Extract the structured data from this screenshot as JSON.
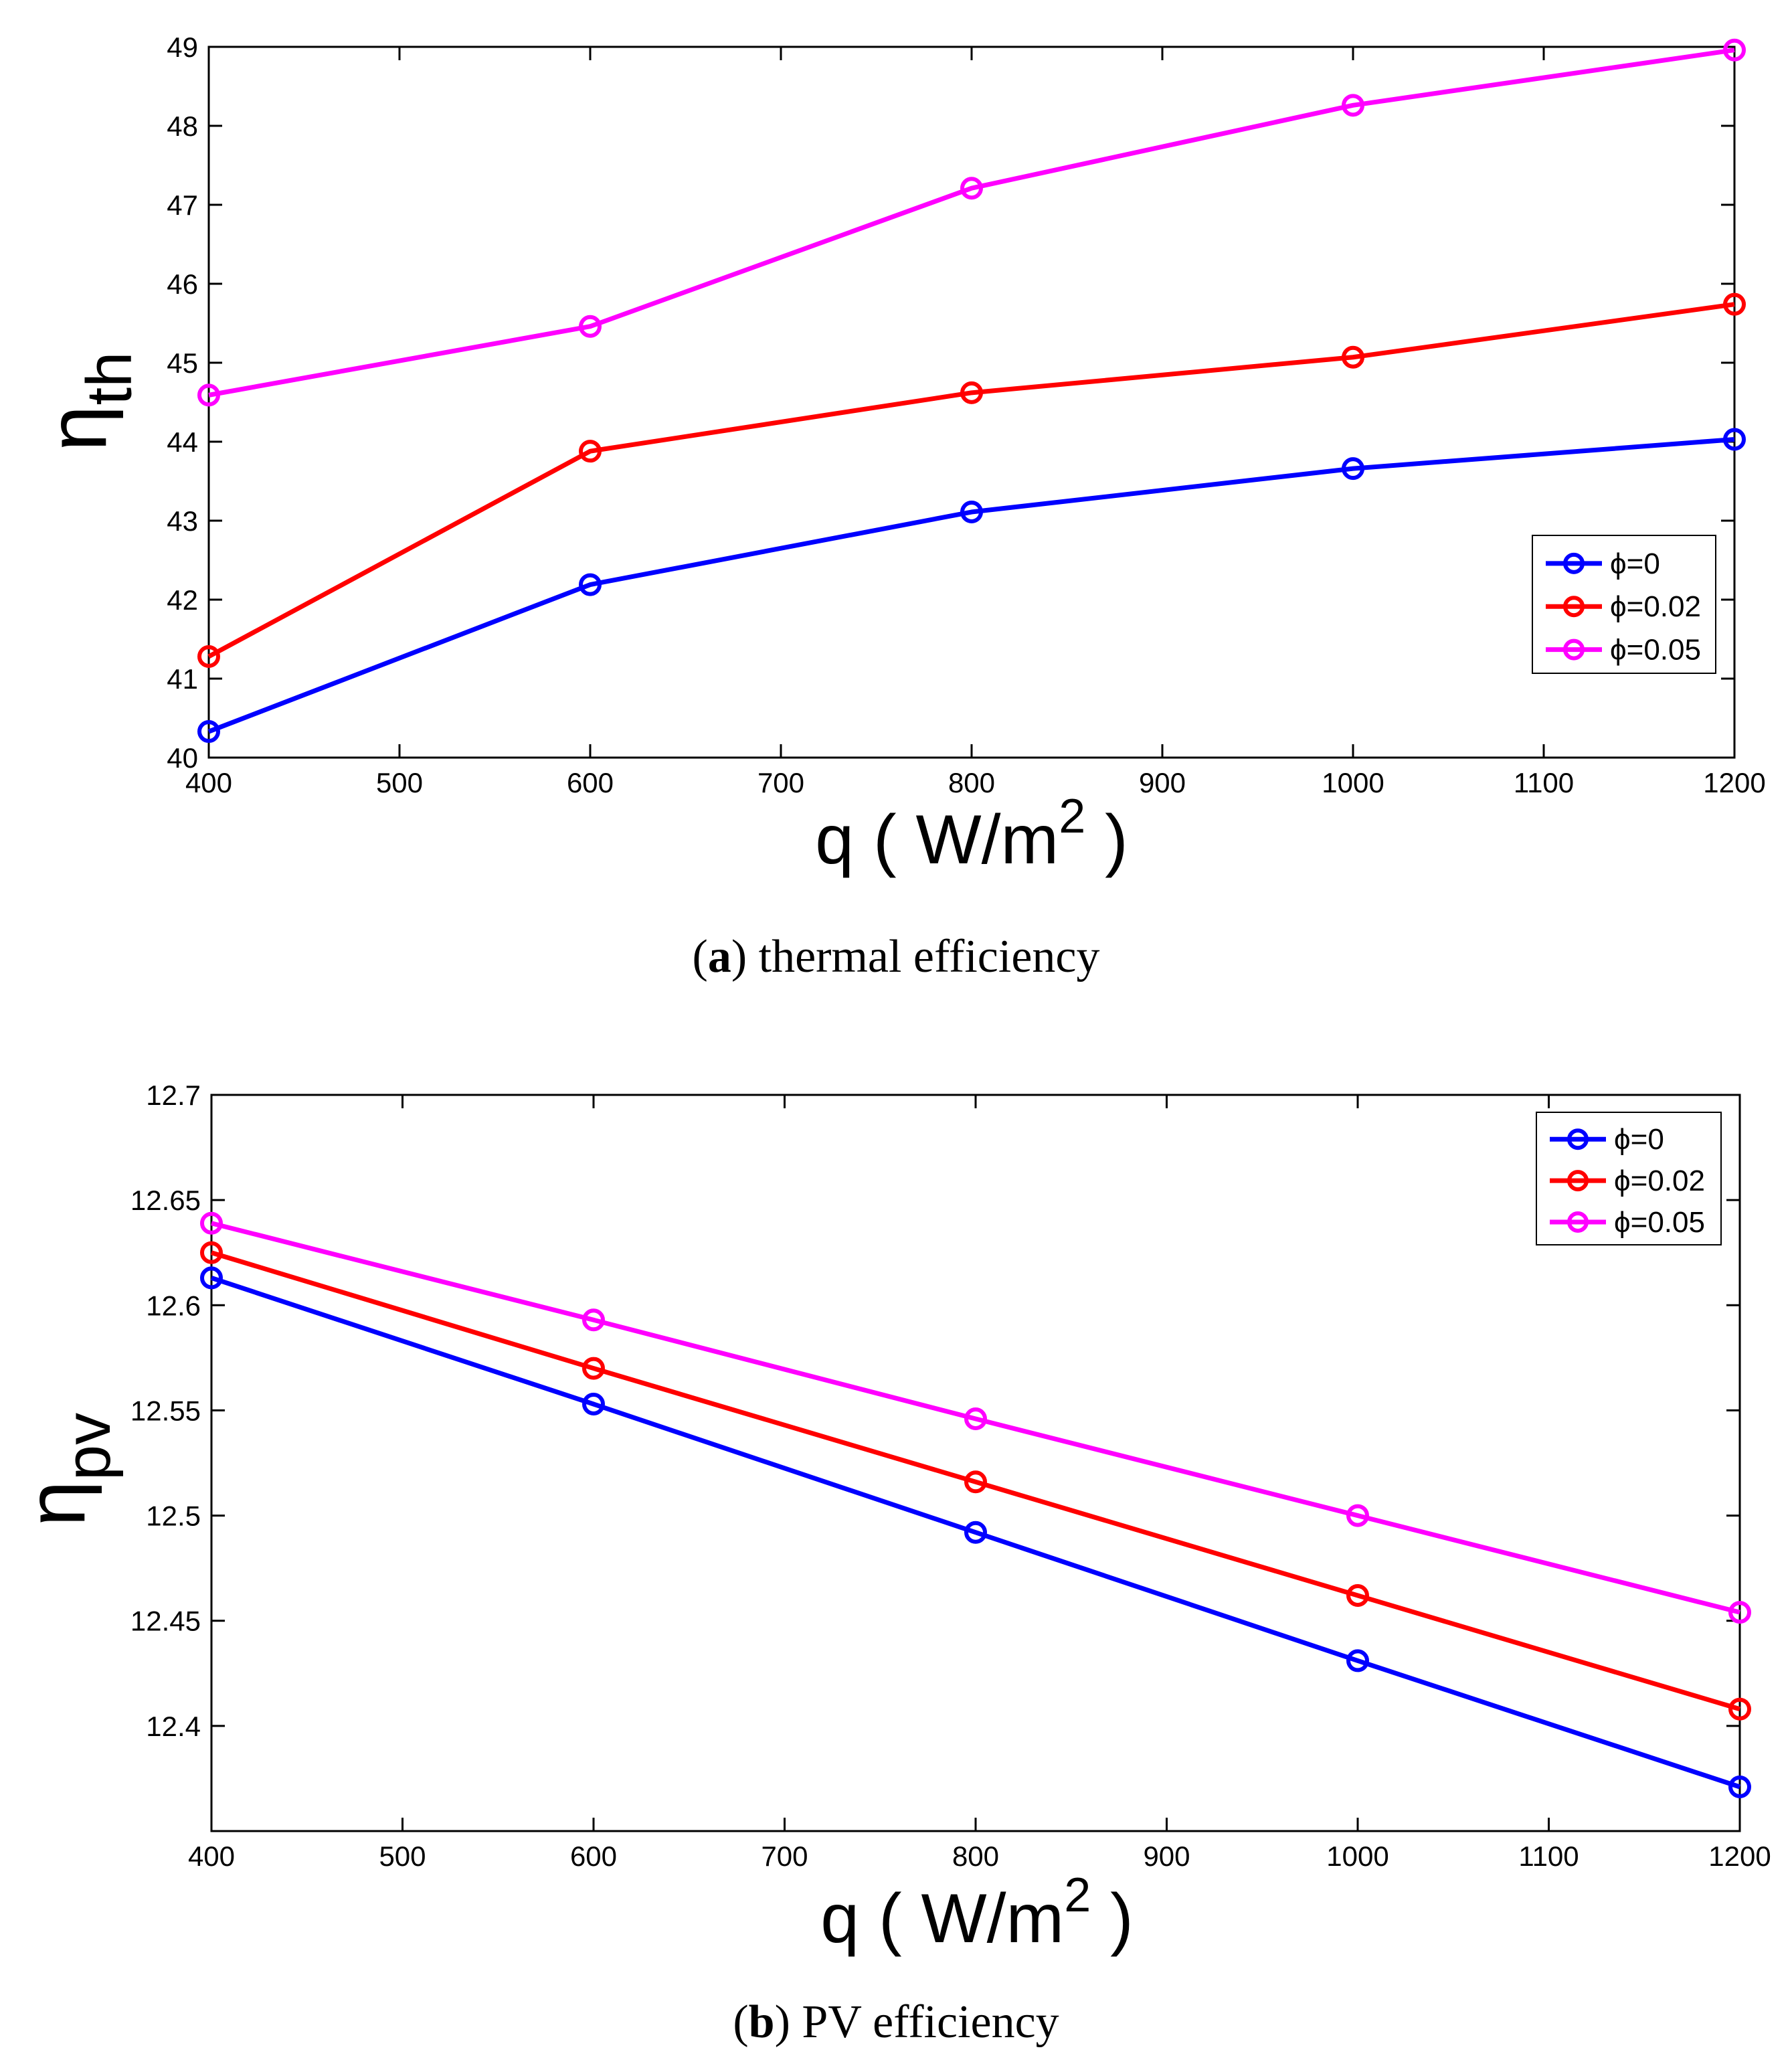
{
  "charts": [
    {
      "id": "a",
      "type": "line",
      "x": [
        400,
        600,
        800,
        1000,
        1200
      ],
      "series": [
        {
          "name": "ϕ=0",
          "color": "#0000ff",
          "values": [
            40.33,
            42.19,
            43.11,
            43.66,
            44.03
          ]
        },
        {
          "name": "ϕ=0.02",
          "color": "#ff0000",
          "values": [
            41.28,
            43.88,
            44.62,
            45.07,
            45.74
          ]
        },
        {
          "name": "ϕ=0.05",
          "color": "#ff00ff",
          "values": [
            44.59,
            45.46,
            47.21,
            48.26,
            48.96
          ]
        }
      ],
      "xlim": [
        400,
        1200
      ],
      "ylim": [
        40,
        49
      ],
      "xticks": [
        400,
        500,
        600,
        700,
        800,
        900,
        1000,
        1100,
        1200
      ],
      "yticks": [
        40,
        41,
        42,
        43,
        44,
        45,
        46,
        47,
        48,
        49
      ],
      "xlabel": {
        "main": "q ( W/m",
        "sup": "2",
        "close": " )"
      },
      "ylabel": {
        "symbol": "η",
        "sub": "th"
      },
      "legend_position": "lower-right",
      "caption": {
        "letter": "a",
        "text": " thermal efficiency"
      }
    },
    {
      "id": "b",
      "type": "line",
      "x": [
        400,
        600,
        800,
        1000,
        1200
      ],
      "series": [
        {
          "name": "ϕ=0",
          "color": "#0000ff",
          "values": [
            12.613,
            12.553,
            12.492,
            12.431,
            12.371
          ]
        },
        {
          "name": "ϕ=0.02",
          "color": "#ff0000",
          "values": [
            12.625,
            12.57,
            12.516,
            12.462,
            12.408
          ]
        },
        {
          "name": "ϕ=0.05",
          "color": "#ff00ff",
          "values": [
            12.639,
            12.593,
            12.546,
            12.5,
            12.454
          ]
        }
      ],
      "xlim": [
        400,
        1200
      ],
      "ylim": [
        12.35,
        12.7
      ],
      "xticks": [
        400,
        500,
        600,
        700,
        800,
        900,
        1000,
        1100,
        1200
      ],
      "yticks": [
        12.4,
        12.45,
        12.5,
        12.55,
        12.6,
        12.65,
        12.7
      ],
      "xlabel": {
        "main": "q ( W/m",
        "sup": "2",
        "close": " )"
      },
      "ylabel": {
        "symbol": "η",
        "sub": "pv"
      },
      "legend_position": "upper-right",
      "caption": {
        "letter": "b",
        "text": " PV efficiency"
      }
    }
  ],
  "chart_data": [
    {
      "type": "line",
      "title": "(a) thermal efficiency",
      "xlabel": "q ( W/m2 )",
      "ylabel": "ηth",
      "x": [
        400,
        600,
        800,
        1000,
        1200
      ],
      "series": [
        {
          "name": "ϕ=0",
          "values": [
            40.33,
            42.19,
            43.11,
            43.66,
            44.03
          ]
        },
        {
          "name": "ϕ=0.02",
          "values": [
            41.28,
            43.88,
            44.62,
            45.07,
            45.74
          ]
        },
        {
          "name": "ϕ=0.05",
          "values": [
            44.59,
            45.46,
            47.21,
            48.26,
            48.96
          ]
        }
      ],
      "xlim": [
        400,
        1200
      ],
      "ylim": [
        40,
        49
      ],
      "legend": "lower-right",
      "grid": false
    },
    {
      "type": "line",
      "title": "(b) PV efficiency",
      "xlabel": "q ( W/m2 )",
      "ylabel": "ηpv",
      "x": [
        400,
        600,
        800,
        1000,
        1200
      ],
      "series": [
        {
          "name": "ϕ=0",
          "values": [
            12.613,
            12.553,
            12.492,
            12.431,
            12.371
          ]
        },
        {
          "name": "ϕ=0.02",
          "values": [
            12.625,
            12.57,
            12.516,
            12.462,
            12.408
          ]
        },
        {
          "name": "ϕ=0.05",
          "values": [
            12.639,
            12.593,
            12.546,
            12.5,
            12.454
          ]
        }
      ],
      "xlim": [
        400,
        1200
      ],
      "ylim": [
        12.35,
        12.7
      ],
      "legend": "upper-right",
      "grid": false
    }
  ]
}
